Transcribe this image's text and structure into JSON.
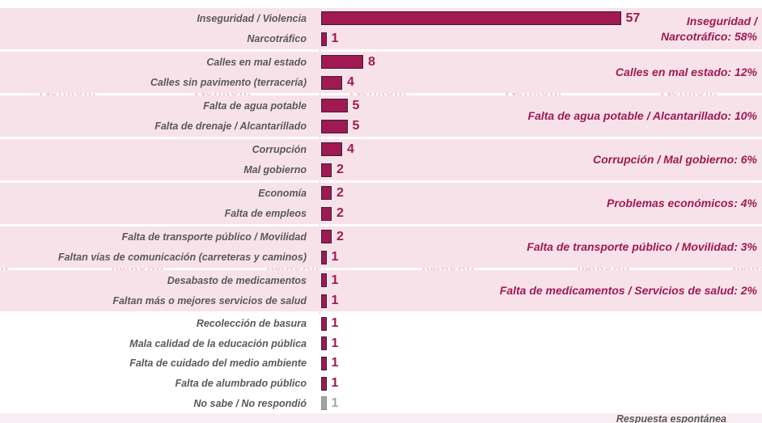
{
  "chart_data": {
    "type": "bar",
    "orientation": "horizontal",
    "title": "",
    "xlabel": "",
    "ylabel": "",
    "xlim": [
      0,
      60
    ],
    "grid": false,
    "footnote": "Respuesta espontánea",
    "watermark": {
      "text": "enkoll.",
      "logo_char": "N",
      "check_char": "✓"
    },
    "colors": {
      "bar": "#A01951",
      "bar_muted": "#A3A3A3",
      "accent_text": "#9E1A50",
      "band_pink": "#F8E2EA",
      "label_gray": "#595959"
    },
    "groups": [
      {
        "band": "pink",
        "annotation_lines": [
          "Inseguridad /",
          "Narcotráfico: 58%"
        ],
        "rows": [
          {
            "label": "Inseguridad / Violencia",
            "value": 57,
            "muted": false
          },
          {
            "label": "Narcotráfico",
            "value": 1,
            "muted": false
          }
        ]
      },
      {
        "band": "pink",
        "annotation_lines": [
          "Calles en mal estado: 12%"
        ],
        "rows": [
          {
            "label": "Calles en mal estado",
            "value": 8,
            "muted": false
          },
          {
            "label": "Calles sin pavimento (terracería)",
            "value": 4,
            "muted": false
          }
        ]
      },
      {
        "band": "pink",
        "annotation_lines": [
          "Falta de agua potable / Alcantarillado: 10%"
        ],
        "rows": [
          {
            "label": "Falta de agua potable",
            "value": 5,
            "muted": false
          },
          {
            "label": "Falta de drenaje / Alcantarillado",
            "value": 5,
            "muted": false
          }
        ]
      },
      {
        "band": "pink",
        "annotation_lines": [
          "Corrupción / Mal gobierno: 6%"
        ],
        "rows": [
          {
            "label": "Corrupción",
            "value": 4,
            "muted": false
          },
          {
            "label": "Mal gobierno",
            "value": 2,
            "muted": false
          }
        ]
      },
      {
        "band": "pink",
        "annotation_lines": [
          "Problemas económicos: 4%"
        ],
        "rows": [
          {
            "label": "Economía",
            "value": 2,
            "muted": false
          },
          {
            "label": "Falta de empleos",
            "value": 2,
            "muted": false
          }
        ]
      },
      {
        "band": "pink",
        "annotation_lines": [
          "Falta de transporte público / Movilidad: 3%"
        ],
        "rows": [
          {
            "label": "Falta de transporte público / Movilidad",
            "value": 2,
            "muted": false
          },
          {
            "label": "Faltan vías de comunicación (carreteras y caminos)",
            "value": 1,
            "muted": false
          }
        ]
      },
      {
        "band": "pink",
        "annotation_lines": [
          "Falta de medicamentos / Servicios de salud: 2%"
        ],
        "rows": [
          {
            "label": "Desabasto de medicamentos",
            "value": 1,
            "muted": false
          },
          {
            "label": "Faltan más o mejores servicios de salud",
            "value": 1,
            "muted": false
          }
        ]
      },
      {
        "band": "white",
        "annotation_lines": [],
        "rows": [
          {
            "label": "Recolección de basura",
            "value": 1,
            "muted": false
          },
          {
            "label": "Mala calidad de la educación pública",
            "value": 1,
            "muted": false
          },
          {
            "label": "Falta de cuidado del medio ambiente",
            "value": 1,
            "muted": false
          },
          {
            "label": "Falta de alumbrado público",
            "value": 1,
            "muted": false
          },
          {
            "label": "No sabe / No respondió",
            "value": 1,
            "muted": true
          }
        ]
      }
    ]
  }
}
